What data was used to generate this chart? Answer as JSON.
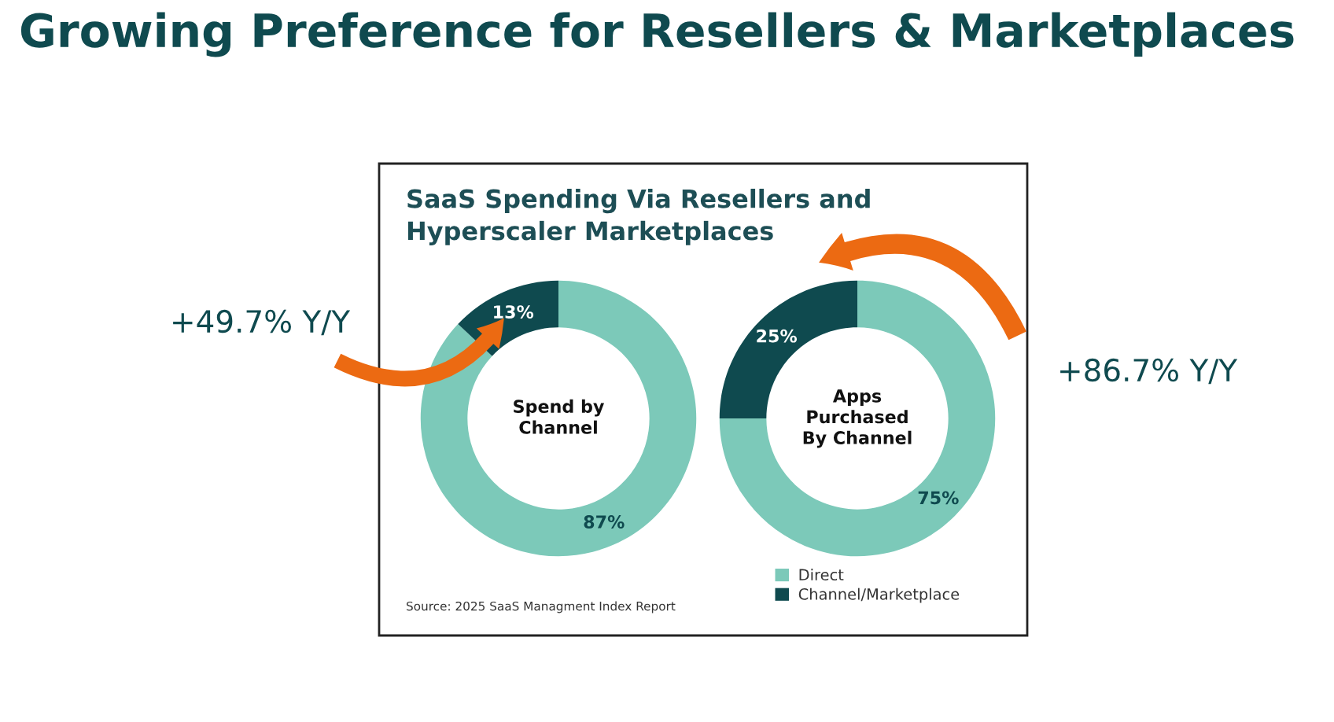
{
  "chart_data": [
    {
      "type": "donut",
      "title": "Spend by\nChannel",
      "categories": [
        "Direct",
        "Channel/Marketplace"
      ],
      "values": [
        87,
        13
      ],
      "colors": [
        "#7cc9b9",
        "#0f4a4f"
      ],
      "value_labels": [
        "87%",
        "13%"
      ],
      "legend": "bottom right",
      "annotations": [
        "Growing Preference for Resellers & Marketplaces",
        "SaaS Spending Via Resellers and\nHyperscaler Marketplaces",
        "Source: 2025 SaaS Managment Index Report",
        "+49.7% Y/Y"
      ]
    },
    {
      "type": "donut",
      "title": "Apps\nPurchased\nBy Channel",
      "categories": [
        null,
        null
      ],
      "values": [
        75,
        25
      ],
      "colors": [
        "#7cc9b9",
        "#0f4a4f"
      ],
      "value_labels": [
        "75%",
        "25%"
      ],
      "annotations": [
        "+86.7% Y/Y"
      ]
    }
  ]
}
